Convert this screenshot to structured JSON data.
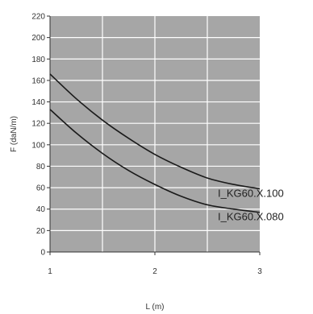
{
  "chart_data": {
    "type": "line",
    "xlabel": "L (m)",
    "ylabel": "F (daN/m)",
    "xlim": [
      1,
      3
    ],
    "ylim": [
      0,
      220
    ],
    "x_ticks": [
      "1",
      "2",
      "3"
    ],
    "y_ticks": [
      "0",
      "20",
      "40",
      "60",
      "80",
      "100",
      "120",
      "140",
      "160",
      "180",
      "200",
      "220"
    ],
    "grid": true,
    "plot_background": "#a6a6a6",
    "grid_color": "#ffffff",
    "line_color": "#1a1a1a",
    "series": [
      {
        "name": "I_KG60.X.100",
        "x": [
          1,
          1.25,
          1.5,
          1.75,
          2,
          2.25,
          2.5,
          2.75,
          3
        ],
        "y": [
          166,
          143,
          123,
          106,
          91,
          79,
          69,
          63,
          59
        ]
      },
      {
        "name": "I_KG60.X.080",
        "x": [
          1,
          1.25,
          1.5,
          1.75,
          2,
          2.25,
          2.5,
          2.75,
          3
        ],
        "y": [
          133,
          111,
          92,
          76,
          63,
          52,
          44,
          40,
          37
        ]
      }
    ]
  }
}
